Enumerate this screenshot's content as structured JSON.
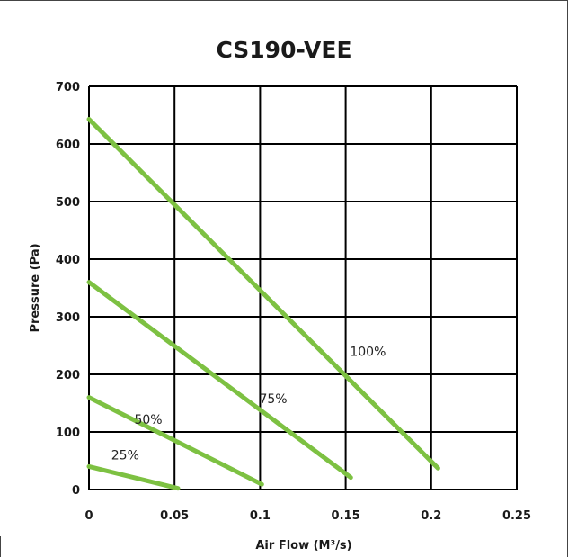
{
  "chart_data": {
    "type": "line",
    "title": "CS190-VEE",
    "xlabel": "Air Flow (M³/s)",
    "ylabel": "Pressure (Pa)",
    "xlim": [
      0,
      0.25
    ],
    "ylim": [
      0,
      700
    ],
    "x_ticks": [
      "0",
      "0.05",
      "0.1",
      "0.15",
      "0.2",
      "0.25"
    ],
    "y_ticks": [
      "0",
      "100",
      "200",
      "300",
      "400",
      "500",
      "600",
      "700"
    ],
    "grid": true,
    "line_color": "#7dc142",
    "series": [
      {
        "name": "25%",
        "x": [
          0,
          0.052
        ],
        "y": [
          40,
          2
        ]
      },
      {
        "name": "50%",
        "x": [
          0,
          0.101
        ],
        "y": [
          160,
          9
        ]
      },
      {
        "name": "75%",
        "x": [
          0,
          0.153
        ],
        "y": [
          360,
          21
        ]
      },
      {
        "name": "100%",
        "x": [
          0,
          0.204
        ],
        "y": [
          643,
          37
        ]
      }
    ]
  }
}
